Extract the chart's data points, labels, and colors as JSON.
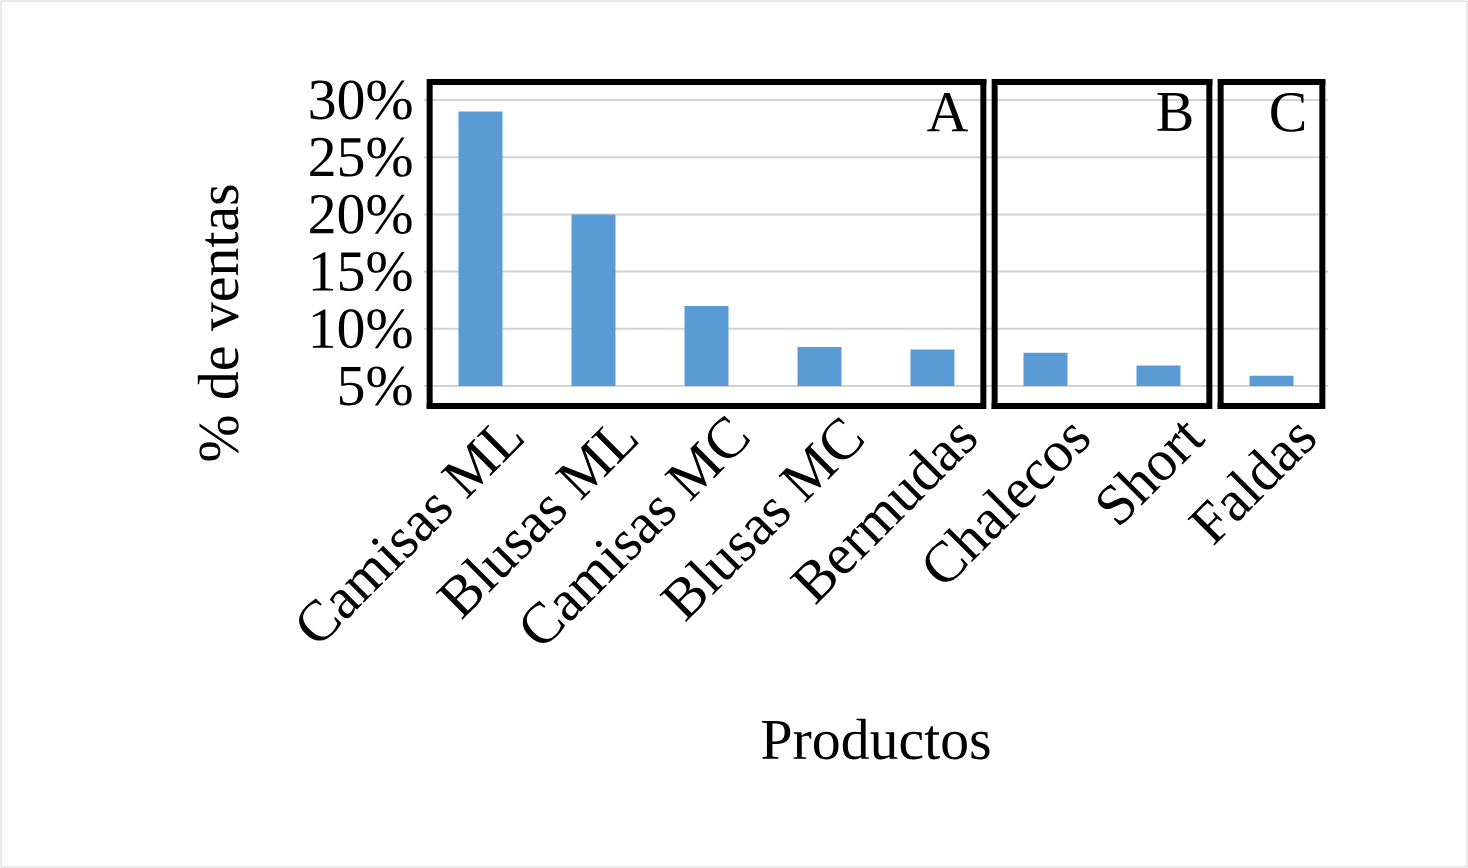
{
  "chart_data": {
    "type": "bar",
    "xlabel": "Productos",
    "ylabel": "%  de ventas",
    "categories": [
      "Camisas ML",
      "Blusas ML",
      "Camisas MC",
      "Blusas MC",
      "Bermudas",
      "Chalecos",
      "Short",
      "Faldas"
    ],
    "values": [
      29,
      20,
      12,
      8.4,
      8.2,
      7.9,
      6.8,
      5.9
    ],
    "color": "#5b9bd5",
    "ylim": [
      5,
      30
    ],
    "yticks": [
      {
        "value": 5,
        "label": "5%"
      },
      {
        "value": 10,
        "label": "10%"
      },
      {
        "value": 15,
        "label": "15%"
      },
      {
        "value": 20,
        "label": "20%"
      },
      {
        "value": 25,
        "label": "25%"
      },
      {
        "value": 30,
        "label": "30%"
      }
    ],
    "grid": "y",
    "annotations": [
      "A",
      "B",
      "C"
    ]
  }
}
